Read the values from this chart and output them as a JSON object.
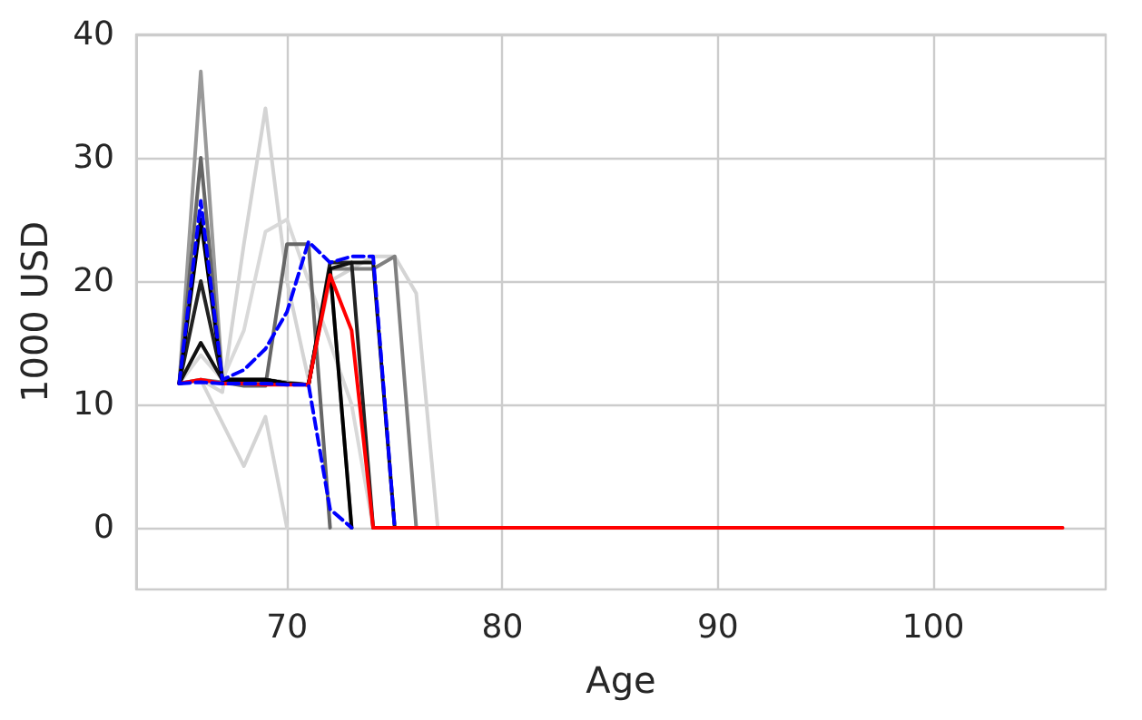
{
  "chart_data": {
    "type": "line",
    "xlabel": "Age",
    "ylabel": "1000 USD",
    "x": [
      65,
      66,
      67,
      68,
      69,
      70,
      71,
      72,
      73,
      74,
      75,
      76,
      77,
      78,
      79,
      80,
      81,
      82,
      83,
      84,
      85,
      86,
      87,
      88,
      89,
      90,
      91,
      92,
      93,
      94,
      95,
      96,
      97,
      98,
      99,
      100,
      101,
      102,
      103,
      104,
      105,
      106
    ],
    "series": [
      {
        "color": "#d4d4d4",
        "values": [
          11.7,
          12,
          8.5,
          5,
          9,
          0,
          null,
          null,
          null,
          null,
          null,
          null,
          null,
          null,
          null,
          null,
          null,
          null,
          null,
          null,
          null,
          null,
          null,
          null,
          null,
          null,
          null,
          null,
          null,
          null,
          null,
          null,
          null,
          null,
          null,
          null,
          null,
          null,
          null,
          null,
          null,
          null
        ]
      },
      {
        "color": "#d4d4d4",
        "values": [
          11.7,
          12,
          11,
          23,
          34,
          20,
          12,
          20,
          21,
          22,
          22,
          19,
          0,
          null,
          null,
          null,
          null,
          null,
          null,
          null,
          null,
          null,
          null,
          null,
          null,
          null,
          null,
          null,
          null,
          null,
          null,
          null,
          null,
          null,
          null,
          null,
          null,
          null,
          null,
          null,
          null,
          null
        ]
      },
      {
        "color": "#d9d9d9",
        "values": [
          11.7,
          14,
          12,
          16,
          24,
          25,
          20,
          15,
          10,
          0,
          null,
          null,
          null,
          null,
          null,
          null,
          null,
          null,
          null,
          null,
          null,
          null,
          null,
          null,
          null,
          null,
          null,
          null,
          null,
          null,
          null,
          null,
          null,
          null,
          null,
          null,
          null,
          null,
          null,
          null,
          null,
          null
        ]
      },
      {
        "color": "#999999",
        "values": [
          11.7,
          37,
          12,
          12,
          12,
          11.8,
          11.6,
          21,
          0,
          null,
          null,
          null,
          null,
          null,
          null,
          null,
          null,
          null,
          null,
          null,
          null,
          null,
          null,
          null,
          null,
          null,
          null,
          null,
          null,
          null,
          null,
          null,
          null,
          null,
          null,
          null,
          null,
          null,
          null,
          null,
          null,
          null
        ]
      },
      {
        "color": "#666666",
        "values": [
          11.7,
          30,
          11.8,
          11.5,
          11.5,
          23,
          23,
          0,
          null,
          null,
          null,
          null,
          null,
          null,
          null,
          null,
          null,
          null,
          null,
          null,
          null,
          null,
          null,
          null,
          null,
          null,
          null,
          null,
          null,
          null,
          null,
          null,
          null,
          null,
          null,
          null,
          null,
          null,
          null,
          null,
          null,
          null
        ]
      },
      {
        "color": "#808080",
        "values": [
          11.7,
          12,
          11.8,
          11.8,
          11.8,
          11.7,
          11.6,
          21,
          21,
          21,
          22,
          0,
          null,
          null,
          null,
          null,
          null,
          null,
          null,
          null,
          null,
          null,
          null,
          null,
          null,
          null,
          null,
          null,
          null,
          null,
          null,
          null,
          null,
          null,
          null,
          null,
          null,
          null,
          null,
          null,
          null,
          null
        ]
      },
      {
        "color": "#222222",
        "values": [
          11.7,
          20,
          12,
          12,
          12,
          11.7,
          11.6,
          21.5,
          21.5,
          0,
          null,
          null,
          null,
          null,
          null,
          null,
          null,
          null,
          null,
          null,
          null,
          null,
          null,
          null,
          null,
          null,
          null,
          null,
          null,
          null,
          null,
          null,
          null,
          null,
          null,
          null,
          null,
          null,
          null,
          null,
          null,
          null
        ]
      },
      {
        "color": "#111111",
        "values": [
          11.7,
          15,
          12,
          12,
          12,
          11.7,
          11.6,
          21,
          21.5,
          21.5,
          0,
          null,
          null,
          null,
          null,
          null,
          null,
          null,
          null,
          null,
          null,
          null,
          null,
          null,
          null,
          null,
          null,
          null,
          null,
          null,
          null,
          null,
          null,
          null,
          null,
          null,
          null,
          null,
          null,
          null,
          null,
          null
        ]
      },
      {
        "color": "#000000",
        "values": [
          11.7,
          25,
          12,
          12,
          12,
          11.7,
          11.6,
          21,
          0,
          null,
          null,
          null,
          null,
          null,
          null,
          null,
          null,
          null,
          null,
          null,
          null,
          null,
          null,
          null,
          null,
          null,
          null,
          null,
          null,
          null,
          null,
          null,
          null,
          null,
          null,
          null,
          null,
          null,
          null,
          null,
          null,
          null
        ]
      },
      {
        "color": "#ff0000",
        "values": [
          11.7,
          12,
          11.7,
          11.7,
          11.6,
          11.6,
          11.6,
          20.5,
          16,
          0,
          0,
          0,
          0,
          0,
          0,
          0,
          0,
          0,
          0,
          0,
          0,
          0,
          0,
          0,
          0,
          0,
          0,
          0,
          0,
          0,
          0,
          0,
          0,
          0,
          0,
          0,
          0,
          0,
          0,
          0,
          0,
          0
        ]
      },
      {
        "color": "#0000ff",
        "line_style": "dashed",
        "values": [
          11.7,
          26.5,
          12,
          12.8,
          14.5,
          17.5,
          23.2,
          21.5,
          22,
          22,
          0,
          null,
          null,
          null,
          null,
          null,
          null,
          null,
          null,
          null,
          null,
          null,
          null,
          null,
          null,
          null,
          null,
          null,
          null,
          null,
          null,
          null,
          null,
          null,
          null,
          null,
          null,
          null,
          null,
          null,
          null,
          null
        ]
      },
      {
        "color": "#0000ff",
        "line_style": "dashed",
        "values": [
          11.7,
          11.8,
          11.7,
          11.7,
          11.7,
          11.6,
          11.6,
          1.5,
          0,
          null,
          null,
          null,
          null,
          null,
          null,
          null,
          null,
          null,
          null,
          null,
          null,
          null,
          null,
          null,
          null,
          null,
          null,
          null,
          null,
          null,
          null,
          null,
          null,
          null,
          null,
          null,
          null,
          null,
          null,
          null,
          null,
          null
        ]
      }
    ],
    "xlim": [
      63,
      108
    ],
    "xticks": [
      70,
      80,
      90,
      100
    ],
    "ylim": [
      -5,
      40
    ],
    "yticks": [
      0,
      10,
      20,
      30,
      40
    ],
    "grid": true,
    "line_style": "solid",
    "marker": "none"
  }
}
